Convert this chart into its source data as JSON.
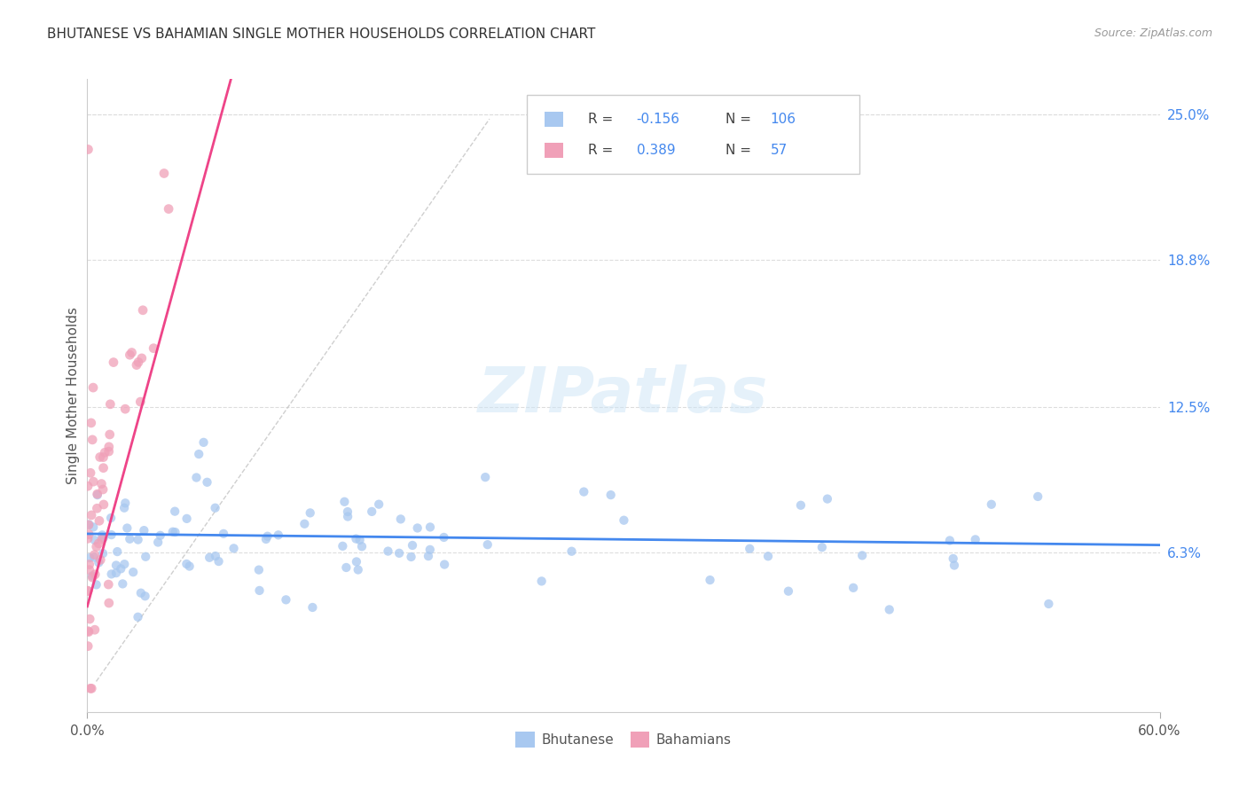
{
  "title": "BHUTANESE VS BAHAMIAN SINGLE MOTHER HOUSEHOLDS CORRELATION CHART",
  "source": "Source: ZipAtlas.com",
  "ylabel": "Single Mother Households",
  "xlim": [
    0.0,
    0.6
  ],
  "ylim": [
    -0.005,
    0.265
  ],
  "ytick_labels_right": [
    "6.3%",
    "12.5%",
    "18.8%",
    "25.0%"
  ],
  "ytick_vals_right": [
    0.063,
    0.125,
    0.188,
    0.25
  ],
  "color_blue": "#a8c8f0",
  "color_pink": "#f0a0b8",
  "color_line_blue": "#4488ee",
  "color_line_pink": "#ee4488",
  "color_text_blue": "#4488ee",
  "background_color": "#ffffff",
  "grid_color": "#dddddd",
  "watermark": "ZIPatlas",
  "legend_r1_label": "R = ",
  "legend_r1_val": "-0.156",
  "legend_n1_label": "N = ",
  "legend_n1_val": "106",
  "legend_r2_label": "R =  ",
  "legend_r2_val": "0.389",
  "legend_n2_label": "N =  ",
  "legend_n2_val": "57",
  "bhut_seed": 999,
  "baha_seed": 888
}
